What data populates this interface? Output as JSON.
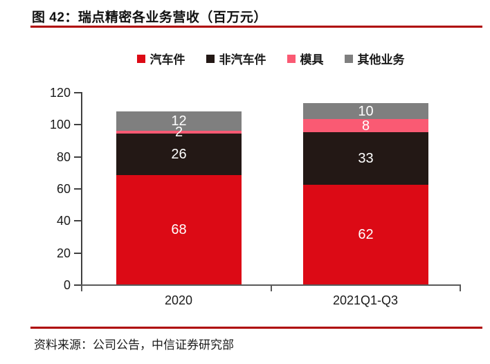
{
  "page": {
    "figure_title": "图 42：瑞点精密各业务营收（百万元）",
    "source_note": "资料来源：公司公告，中信证券研究部"
  },
  "colors": {
    "rule_red": "#AE0000",
    "axis_y": "#404040",
    "axis_x": "#595959",
    "text": "#1A1A1A",
    "data_label": "#FFFFFF"
  },
  "chart_data": {
    "type": "bar",
    "stacked": true,
    "title": "瑞点精密各业务营收（百万元）",
    "categories": [
      "2020",
      "2021Q1-Q3"
    ],
    "series": [
      {
        "name": "汽车件",
        "color": "#DC0A15",
        "values": [
          68,
          62
        ]
      },
      {
        "name": "非汽车件",
        "color": "#231815",
        "values": [
          26,
          33
        ]
      },
      {
        "name": "模具",
        "color": "#FA5A73",
        "values": [
          2,
          8
        ]
      },
      {
        "name": "其他业务",
        "color": "#7F7F7F",
        "values": [
          12,
          10
        ]
      }
    ],
    "ylim": [
      0,
      120
    ],
    "yticks": [
      0,
      20,
      40,
      60,
      80,
      100,
      120
    ],
    "grid": false,
    "legend_position": "top",
    "data_labels": true,
    "totals": [
      108,
      113
    ]
  }
}
